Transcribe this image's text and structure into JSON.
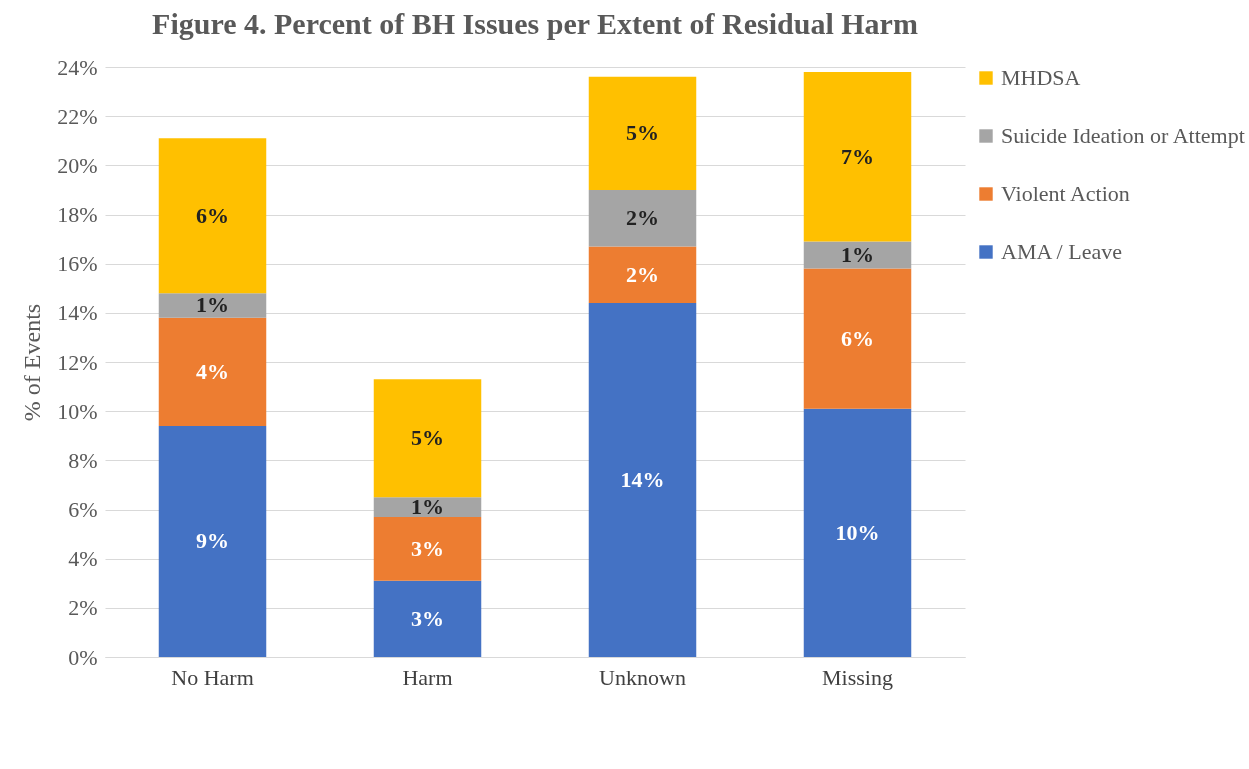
{
  "chart_data": {
    "type": "bar",
    "title": "Figure 4. Percent of BH Issues per Extent of Residual Harm",
    "ylabel": "% of Events",
    "categories": [
      "No Harm",
      "Harm",
      "Unknown",
      "Missing"
    ],
    "stacked": true,
    "series": [
      {
        "name": "AMA / Leave",
        "color": "#4472c4",
        "values": [
          9.4,
          3.1,
          14.4,
          10.1
        ],
        "value_labels": [
          "9%",
          "3%",
          "14%",
          "10%"
        ]
      },
      {
        "name": "Violent Action",
        "color": "#ed7d31",
        "values": [
          4.4,
          2.6,
          2.3,
          5.7
        ],
        "value_labels": [
          "4%",
          "3%",
          "2%",
          "6%"
        ]
      },
      {
        "name": "Suicide Ideation or Attempt",
        "color": "#a5a5a5",
        "values": [
          1.0,
          0.8,
          2.3,
          1.1
        ],
        "value_labels": [
          "1%",
          "1%",
          "2%",
          "1%"
        ]
      },
      {
        "name": "MHDSA",
        "color": "#ffc000",
        "values": [
          6.3,
          4.8,
          4.6,
          6.9
        ],
        "value_labels": [
          "6%",
          "5%",
          "5%",
          "7%"
        ]
      }
    ],
    "ylim": [
      0,
      24
    ],
    "yticks": [
      {
        "value": 0,
        "label": "0%"
      },
      {
        "value": 2,
        "label": "2%"
      },
      {
        "value": 4,
        "label": "4%"
      },
      {
        "value": 6,
        "label": "6%"
      },
      {
        "value": 8,
        "label": "8%"
      },
      {
        "value": 10,
        "label": "10%"
      },
      {
        "value": 12,
        "label": "12%"
      },
      {
        "value": 14,
        "label": "14%"
      },
      {
        "value": 16,
        "label": "16%"
      },
      {
        "value": 18,
        "label": "18%"
      },
      {
        "value": 20,
        "label": "20%"
      },
      {
        "value": 22,
        "label": "22%"
      },
      {
        "value": 24,
        "label": "24%"
      }
    ],
    "grid": "y",
    "legend": "right"
  }
}
